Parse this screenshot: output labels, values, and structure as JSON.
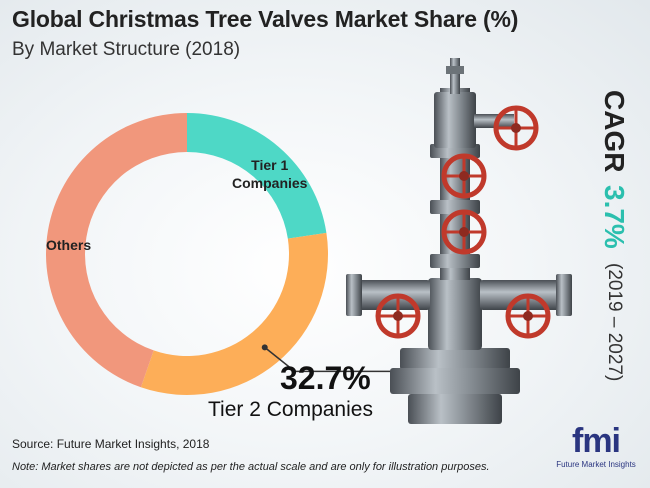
{
  "title": "Global Christmas Tree Valves Market Share (%)",
  "subtitle": "By Market Structure (2018)",
  "chart_data": {
    "type": "pie",
    "variant": "donut",
    "categories": [
      "Tier 1 Companies",
      "Tier 2 Companies",
      "Others"
    ],
    "values": [
      22.6,
      32.7,
      44.7
    ],
    "colors": [
      "#4ed8c6",
      "#fdae58",
      "#f1977c"
    ],
    "labels": {
      "tier1_line1": "Tier 1",
      "tier1_line2": "Companies",
      "others": "Others"
    },
    "highlight": {
      "value_text": "32.7%",
      "label": "Tier 2 Companies"
    },
    "legend": "none"
  },
  "cagr": {
    "label": "CAGR",
    "value": "3.7%",
    "period": "(2019 – 2027)"
  },
  "footer": {
    "source": "Source: Future Market Insights, 2018",
    "note": "Note: Market shares are not depicted as per the actual scale and are only for illustration purposes."
  },
  "logo": {
    "mark": "fmi",
    "text": "Future Market Insights",
    "dot_colors": [
      "#e53935",
      "#fdae58",
      "#2bbfae",
      "#2a3580"
    ]
  },
  "image": {
    "name": "christmas-tree-valve"
  }
}
